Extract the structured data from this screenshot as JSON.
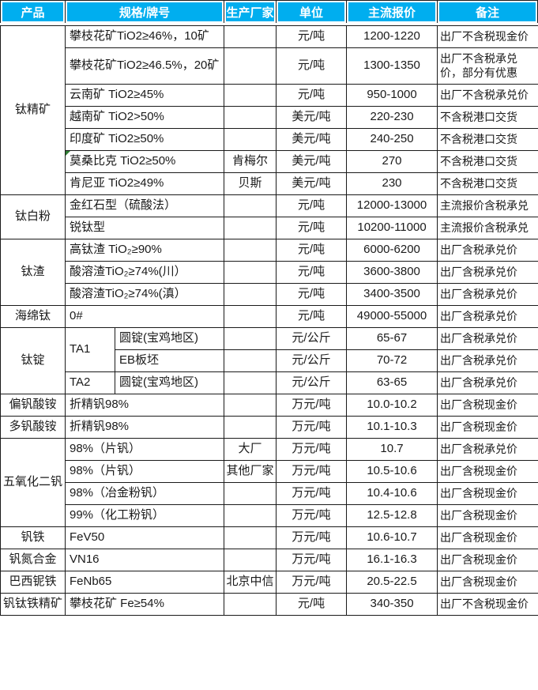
{
  "colors": {
    "header_bg": "#00AEEF",
    "header_text": "#ffffff",
    "grid_border": "#1a1a1a",
    "comment_marker_green": "#2e7d32"
  },
  "table": {
    "columns": [
      "产品",
      "规格/牌号",
      "生产厂家",
      "单位",
      "主流报价",
      "备注"
    ],
    "groups": [
      {
        "product": "钛精矿",
        "rows": [
          {
            "spec": "攀枝花矿TiO2≥46%，10矿",
            "mfr": "",
            "unit": "元/吨",
            "price": "1200-1220",
            "note": "出厂不含税现金价"
          },
          {
            "spec": "攀枝花矿TiO2≥46.5%，20矿",
            "mfr": "",
            "unit": "元/吨",
            "price": "1300-1350",
            "note": "出厂不含税承兑价，部分有优惠",
            "tall": true
          },
          {
            "spec": "云南矿 TiO2≥45%",
            "mfr": "",
            "unit": "元/吨",
            "price": "950-1000",
            "note": "出厂不含税承兑价"
          },
          {
            "spec": "越南矿 TiO2>50%",
            "mfr": "",
            "unit": "美元/吨",
            "price": "220-230",
            "note": "不含税港口交货"
          },
          {
            "spec": "印度矿 TiO2≥50%",
            "mfr": "",
            "unit": "美元/吨",
            "price": "240-250",
            "note": "不含税港口交货"
          },
          {
            "spec": "莫桑比克 TiO2≥50%",
            "mfr": "肯梅尔",
            "unit": "美元/吨",
            "price": "270",
            "note": "不含税港口交货",
            "comment_marker": true
          },
          {
            "spec": "肯尼亚 TiO2≥49%",
            "mfr": "贝斯",
            "unit": "美元/吨",
            "price": "230",
            "note": "不含税港口交货"
          }
        ]
      },
      {
        "product": "钛白粉",
        "rows": [
          {
            "spec": "金红石型（硫酸法）",
            "mfr": "",
            "unit": "元/吨",
            "price": "12000-13000",
            "note": "主流报价含税承兑"
          },
          {
            "spec": "锐钛型",
            "mfr": "",
            "unit": "元/吨",
            "price": "10200-11000",
            "note": "主流报价含税承兑"
          }
        ]
      },
      {
        "product": "钛渣",
        "rows": [
          {
            "spec": "高钛渣 TiO₂≥90%",
            "mfr": "",
            "unit": "元/吨",
            "price": "6000-6200",
            "note": "出厂含税承兑价"
          },
          {
            "spec": "酸溶渣TiO₂≥74%(川）",
            "mfr": "",
            "unit": "元/吨",
            "price": "3600-3800",
            "note": "出厂含税承兑价"
          },
          {
            "spec": "酸溶渣TiO₂≥74%(滇）",
            "mfr": "",
            "unit": "元/吨",
            "price": "3400-3500",
            "note": "出厂含税承兑价"
          }
        ]
      },
      {
        "product": "海绵钛",
        "rows": [
          {
            "spec": "0#",
            "mfr": "",
            "unit": "元/吨",
            "price": "49000-55000",
            "note": "出厂含税承兑价"
          }
        ]
      },
      {
        "product": "钛锭",
        "nested": true,
        "rows": [
          {
            "grade": "TA1",
            "grade_rowspan": 2,
            "spec": "圆锭(宝鸡地区)",
            "mfr": "",
            "unit": "元/公斤",
            "price": "65-67",
            "note": "出厂含税承兑价"
          },
          {
            "spec": "EB板坯",
            "mfr": "",
            "unit": "元/公斤",
            "price": "70-72",
            "note": "出厂含税承兑价"
          },
          {
            "grade": "TA2",
            "spec": "圆锭(宝鸡地区)",
            "mfr": "",
            "unit": "元/公斤",
            "price": "63-65",
            "note": "出厂含税承兑价"
          }
        ]
      },
      {
        "product": "偏钒酸铵",
        "rows": [
          {
            "spec": "折精钒98%",
            "mfr": "",
            "unit": "万元/吨",
            "price": "10.0-10.2",
            "note": "出厂含税现金价"
          }
        ]
      },
      {
        "product": "多钒酸铵",
        "rows": [
          {
            "spec": "折精钒98%",
            "mfr": "",
            "unit": "万元/吨",
            "price": "10.1-10.3",
            "note": "出厂含税现金价"
          }
        ]
      },
      {
        "product": "五氧化二钒",
        "rows": [
          {
            "spec": "98%（片钒）",
            "mfr": "大厂",
            "unit": "万元/吨",
            "price": "10.7",
            "note": "出厂含税承兑价"
          },
          {
            "spec": "98%（片钒）",
            "mfr": "其他厂家",
            "unit": "万元/吨",
            "price": "10.5-10.6",
            "note": "出厂含税现金价"
          },
          {
            "spec": "98%（冶金粉钒）",
            "mfr": "",
            "unit": "万元/吨",
            "price": "10.4-10.6",
            "note": "出厂含税现金价"
          },
          {
            "spec": "99%（化工粉钒）",
            "mfr": "",
            "unit": "万元/吨",
            "price": "12.5-12.8",
            "note": "出厂含税现金价"
          }
        ]
      },
      {
        "product": "钒铁",
        "rows": [
          {
            "spec": "FeV50",
            "mfr": "",
            "unit": "万元/吨",
            "price": "10.6-10.7",
            "note": "出厂含税现金价"
          }
        ]
      },
      {
        "product": "钒氮合金",
        "rows": [
          {
            "spec": "VN16",
            "mfr": "",
            "unit": "万元/吨",
            "price": "16.1-16.3",
            "note": "出厂含税现金价"
          }
        ]
      },
      {
        "product": "巴西铌铁",
        "rows": [
          {
            "spec": "FeNb65",
            "mfr": "北京中信",
            "unit": "万元/吨",
            "price": "20.5-22.5",
            "note": "出厂含税现金价"
          }
        ]
      },
      {
        "product": "钒钛铁精矿",
        "rows": [
          {
            "spec": "攀枝花矿 Fe≥54%",
            "mfr": "",
            "unit": "元/吨",
            "price": "340-350",
            "note": "出厂不含税现金价"
          }
        ]
      }
    ]
  }
}
